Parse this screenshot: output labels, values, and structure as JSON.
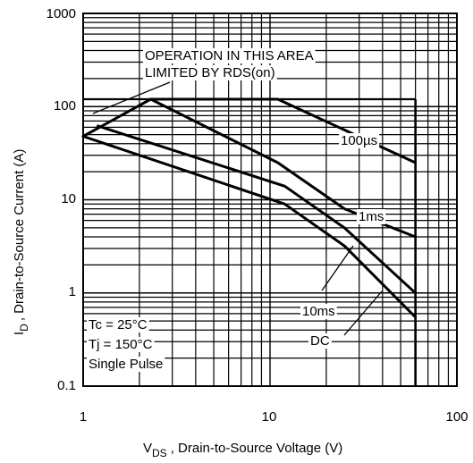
{
  "chart_data": {
    "type": "line",
    "xscale": "log",
    "yscale": "log",
    "xlim": [
      1,
      100
    ],
    "ylim": [
      0.1,
      1000
    ],
    "x_ticks": [
      "1",
      "10",
      "100"
    ],
    "y_ticks": [
      "0.1",
      "1",
      "10",
      "100",
      "1000"
    ],
    "xlabel_main": "V",
    "xlabel_sub": "DS",
    "xlabel_rest": ", Drain-to-Source Voltage (V)",
    "ylabel_main": "I",
    "ylabel_sub": "D",
    "ylabel_rest": ", Drain-to-Source Current (A)",
    "grid": true,
    "boundary": {
      "current_limit_A": 120,
      "voltage_limit_V": 60
    },
    "series": [
      {
        "name": "100µs",
        "x": [
          2.3,
          11,
          60
        ],
        "y": [
          120,
          120,
          25
        ]
      },
      {
        "name": "1ms",
        "x": [
          1.0,
          2.3,
          11,
          25,
          60
        ],
        "y": [
          48,
          120,
          25,
          8,
          4
        ]
      },
      {
        "name": "10ms",
        "x": [
          1.2,
          12,
          25,
          60
        ],
        "y": [
          62,
          14,
          5,
          1.0
        ]
      },
      {
        "name": "DC",
        "x": [
          1.0,
          12,
          25,
          60
        ],
        "y": [
          48,
          9,
          3.2,
          0.55
        ]
      }
    ],
    "annotations": {
      "rds_line1": "OPERATION IN THIS AREA",
      "rds_line2": "LIMITED BY RDS(on)",
      "label_100us": "100µs",
      "label_1ms": "1ms",
      "label_10ms": "10ms",
      "label_dc": "DC",
      "cond1": "Tc = 25°C",
      "cond2": "Tj = 150°C",
      "cond3": "Single Pulse"
    }
  }
}
